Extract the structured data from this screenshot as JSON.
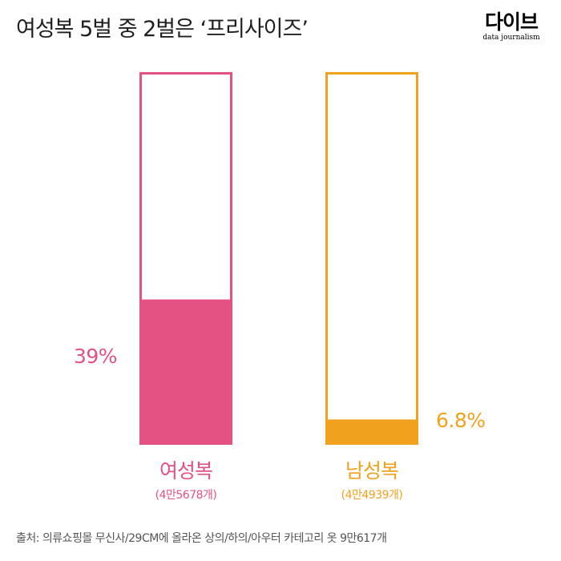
{
  "title": "여성복 5벌 중 2벌은 ‘프리사이즈’",
  "logo": {
    "main": "다이브",
    "sub": "data journalism"
  },
  "chart_data": {
    "type": "bar",
    "categories": [
      "여성복",
      "남성복"
    ],
    "counts": [
      "(4만5678개)",
      "(4만4939개)"
    ],
    "values": [
      39,
      6.8
    ],
    "value_labels": [
      "39%",
      "6.8%"
    ],
    "ylim": [
      0,
      100
    ],
    "colors": [
      "#e35283",
      "#f0a21e"
    ]
  },
  "source": "출처: 의류쇼핑몰 무신사/29CM에 올라온 상의/하의/아우터 카테고리 옷 9만617개"
}
